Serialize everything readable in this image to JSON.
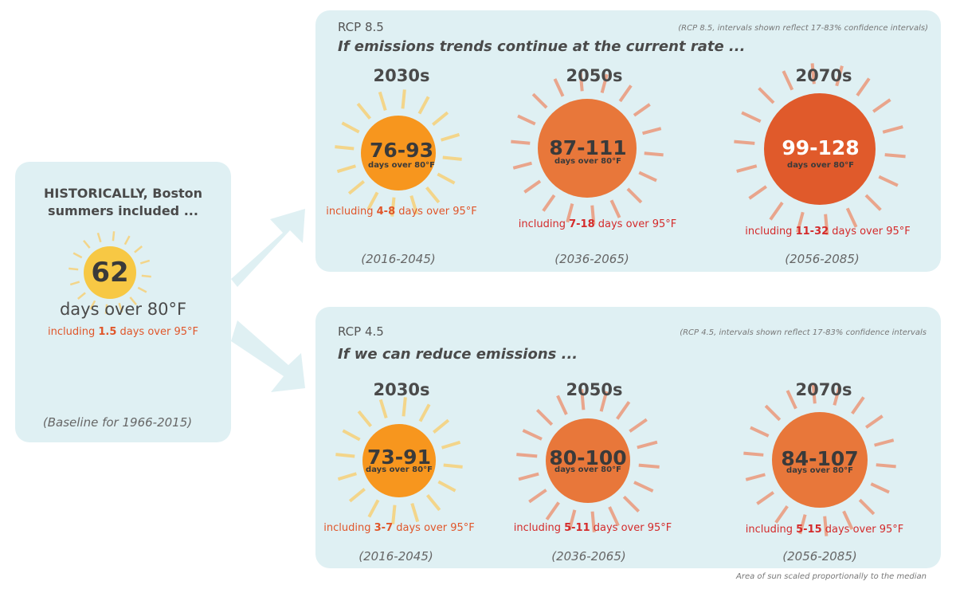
{
  "historical": {
    "title_line1": "HISTORICALLY, Boston",
    "title_line2": "summers included ...",
    "value": "62",
    "unit": "days over 80°F",
    "including_prefix": "including ",
    "including_value": "1.5",
    "including_suffix": " days over 95°F",
    "period": "(Baseline for 1966-2015)"
  },
  "rcp85": {
    "label": "RCP 8.5",
    "note": "(RCP 8.5, intervals shown reflect 17-83% confidence intervals)",
    "subtitle": "If emissions trends continue at the current rate ...",
    "items": [
      {
        "decade": "2030s",
        "range": "76-93",
        "unit": "days over 80°F",
        "incl_prefix": "including ",
        "incl_value": "4-8",
        "incl_suffix": " days over 95°F",
        "period": "(2016-2045)"
      },
      {
        "decade": "2050s",
        "range": "87-111",
        "unit": "days over 80°F",
        "incl_prefix": "including ",
        "incl_value": "7-18",
        "incl_suffix": " days over 95°F",
        "period": "(2036-2065)"
      },
      {
        "decade": "2070s",
        "range": "99-128",
        "unit": "days over 80°F",
        "incl_prefix": "including ",
        "incl_value": "11-32",
        "incl_suffix": " days over 95°F",
        "period": "(2056-2085)"
      }
    ]
  },
  "rcp45": {
    "label": "RCP 4.5",
    "note": "(RCP 4.5, intervals shown reflect 17-83% confidence intervals",
    "subtitle": "If we can reduce emissions ...",
    "items": [
      {
        "decade": "2030s",
        "range": "73-91",
        "unit": "days over 80°F",
        "incl_prefix": "including ",
        "incl_value": "3-7",
        "incl_suffix": " days over 95°F",
        "period": "(2016-2045)"
      },
      {
        "decade": "2050s",
        "range": "80-100",
        "unit": "days over 80°F",
        "incl_prefix": "including ",
        "incl_value": "5-11",
        "incl_suffix": " days over 95°F",
        "period": "(2036-2065)"
      },
      {
        "decade": "2070s",
        "range": "84-107",
        "unit": "days over 80°F",
        "incl_prefix": "including ",
        "incl_value": "5-15",
        "incl_suffix": " days over 95°F",
        "period": "(2056-2085)"
      }
    ]
  },
  "footnote": "Area of sun scaled proportionally to the median",
  "colors": {
    "panel": "#dff0f3",
    "sun_historical": "#f7c844",
    "sun_light": "#f7961e",
    "sun_mid": "#e8773a",
    "sun_dark": "#e05a2b",
    "ray_yellow": "#f3d58a",
    "ray_salmon": "#e9a58c",
    "incl_orange": "#e0562a",
    "incl_red": "#d42b2b"
  }
}
